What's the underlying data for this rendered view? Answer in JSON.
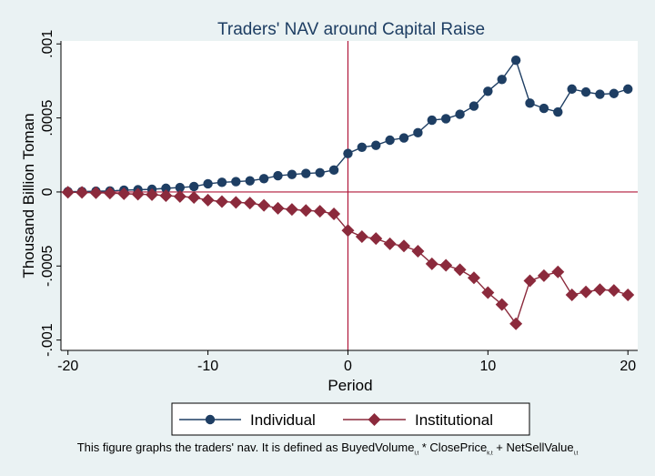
{
  "chart_data": {
    "type": "line",
    "title": "Traders' NAV around Capital Raise",
    "xlabel": "Period",
    "ylabel": "Thousand Billion Toman",
    "xlim": [
      -20.5,
      20.7
    ],
    "ylim": [
      -0.00107,
      0.00102
    ],
    "xticks": [
      -20,
      -10,
      0,
      10,
      20
    ],
    "xtick_labels": [
      "-20",
      "-10",
      "0",
      "10",
      "20"
    ],
    "yticks": [
      -0.001,
      -0.0005,
      0,
      0.0005,
      0.001
    ],
    "ytick_labels": [
      "-.001",
      "-.0005",
      "0",
      ".0005",
      ".001"
    ],
    "reference_lines": {
      "x": 0,
      "y": 0,
      "color": "#b0173a"
    },
    "grid": false,
    "legend_position": "bottom",
    "x": [
      -20,
      -19,
      -18,
      -17,
      -16,
      -15,
      -14,
      -13,
      -12,
      -11,
      -10,
      -9,
      -8,
      -7,
      -6,
      -5,
      -4,
      -3,
      -2,
      -1,
      0,
      1,
      2,
      3,
      4,
      5,
      6,
      7,
      8,
      9,
      10,
      11,
      12,
      13,
      14,
      15,
      16,
      17,
      18,
      19,
      20
    ],
    "series": [
      {
        "name": "Individual",
        "marker": "circle",
        "color": "#1e3e63",
        "values": [
          2e-06,
          3e-06,
          5e-06,
          7e-06,
          1.2e-05,
          1.5e-05,
          1.8e-05,
          2.5e-05,
          3e-05,
          3.7e-05,
          5.5e-05,
          6.5e-05,
          7e-05,
          7.5e-05,
          9e-05,
          0.00011,
          0.000118,
          0.000125,
          0.00013,
          0.000148,
          0.00026,
          0.000302,
          0.000315,
          0.00035,
          0.000365,
          0.0004,
          0.000485,
          0.000495,
          0.000525,
          0.00058,
          0.00068,
          0.00076,
          0.00089,
          0.0006,
          0.000565,
          0.00054,
          0.000695,
          0.000675,
          0.00066,
          0.000665,
          0.000695
        ]
      },
      {
        "name": "Institutional",
        "marker": "diamond",
        "color": "#8b2a3c",
        "values": [
          -2e-06,
          -3e-06,
          -5e-06,
          -7e-06,
          -1.2e-05,
          -1.5e-05,
          -1.8e-05,
          -2.5e-05,
          -3e-05,
          -3.7e-05,
          -5.5e-05,
          -6.5e-05,
          -7e-05,
          -7.5e-05,
          -9e-05,
          -0.00011,
          -0.000118,
          -0.000125,
          -0.00013,
          -0.000148,
          -0.00026,
          -0.000302,
          -0.000315,
          -0.00035,
          -0.000365,
          -0.0004,
          -0.000485,
          -0.000495,
          -0.000525,
          -0.00058,
          -0.00068,
          -0.00076,
          -0.00089,
          -0.0006,
          -0.000565,
          -0.00054,
          -0.000695,
          -0.000675,
          -0.00066,
          -0.000665,
          -0.000695
        ]
      }
    ]
  },
  "caption": {
    "text": "This figure graphs the traders' nav. It is defined as BuyedVolume",
    "sub1": "i,t",
    "mid1": " * ClosePrice",
    "sub2": "k,t",
    "mid2": " + NetSellValue",
    "sub3": "i,t"
  }
}
